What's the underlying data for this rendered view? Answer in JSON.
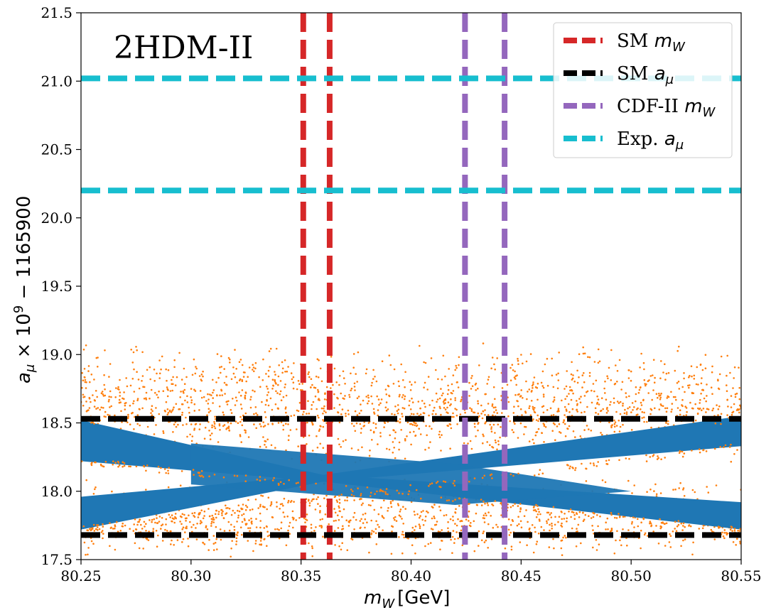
{
  "chart_data": {
    "type": "scatter",
    "panel_label": "2HDM-II",
    "xlabel_main": "m",
    "xlabel_sub": "W",
    "xlabel_unit": "[GeV]",
    "ylabel_main": "a",
    "ylabel_sub": "μ",
    "ylabel_rest": " × 10",
    "ylabel_exp": "9",
    "ylabel_tail": " − 1165900",
    "xlim": [
      80.25,
      80.55
    ],
    "ylim": [
      17.5,
      21.5
    ],
    "x_ticks": [
      80.25,
      80.3,
      80.35,
      80.4,
      80.45,
      80.5,
      80.55
    ],
    "x_tick_labels": [
      "80.25",
      "80.30",
      "80.35",
      "80.40",
      "80.45",
      "80.50",
      "80.55"
    ],
    "y_ticks": [
      17.5,
      18.0,
      18.5,
      19.0,
      19.5,
      20.0,
      20.5,
      21.0,
      21.5
    ],
    "y_tick_labels": [
      "17.5",
      "18.0",
      "18.5",
      "19.0",
      "19.5",
      "20.0",
      "20.5",
      "21.0",
      "21.5"
    ],
    "grid": false,
    "legend_position": "top-right",
    "scatter_series": [
      {
        "color": "#ff7f0e",
        "role": "outer band",
        "upper_band": {
          "center": 18.6,
          "spread": 0.45
        },
        "lower_band": {
          "center": 17.8,
          "spread": 0.3
        }
      },
      {
        "color": "#1f77b4",
        "role": "inner band",
        "crossing_x": 80.36,
        "crossing_y": 18.1,
        "upper_at_edges": 18.45,
        "lower_at_edges": 17.85
      }
    ],
    "reference_lines": [
      {
        "legend": "SM",
        "legend_sub": "m",
        "legend_sub2": "W",
        "orientation": "vertical",
        "values": [
          80.351,
          80.363
        ],
        "color": "#d62728"
      },
      {
        "legend": "SM",
        "legend_sub": "a",
        "legend_sub2": "μ",
        "orientation": "horizontal",
        "values": [
          18.53,
          17.68
        ],
        "color": "#000000"
      },
      {
        "legend": "CDF-II",
        "legend_sub": "m",
        "legend_sub2": "W",
        "orientation": "vertical",
        "values": [
          80.4245,
          80.4425
        ],
        "color": "#9467bd"
      },
      {
        "legend": "Exp.",
        "legend_sub": "a",
        "legend_sub2": "μ",
        "orientation": "horizontal",
        "values": [
          21.02,
          20.2
        ],
        "color": "#17becf"
      }
    ]
  }
}
